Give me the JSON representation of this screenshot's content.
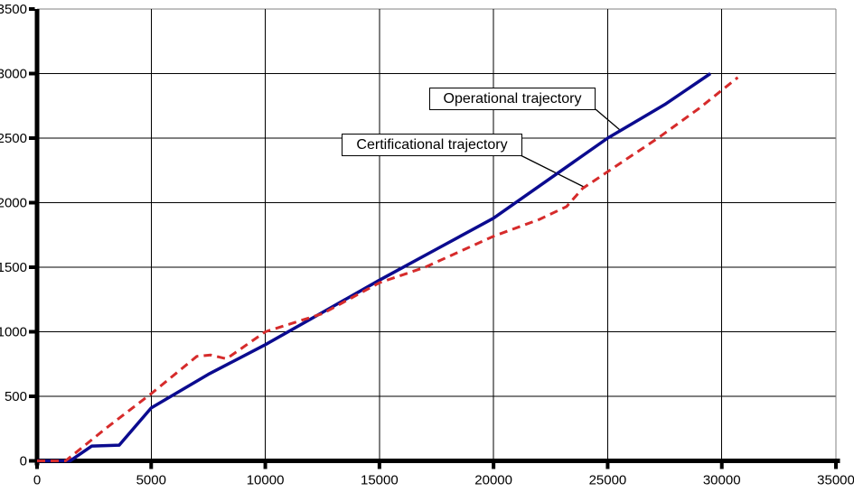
{
  "chart_data": {
    "type": "line",
    "title": "",
    "xlabel": "",
    "ylabel": "",
    "grid": "on",
    "legend_position": "none (annotation boxes with leader lines inside plot)",
    "x_axis": {
      "min": 0,
      "max": 35000,
      "tick_step": 5000,
      "ticks": [
        0,
        5000,
        10000,
        15000,
        20000,
        25000,
        30000,
        35000
      ]
    },
    "y_axis": {
      "min": 0,
      "max": 3500,
      "tick_step": 500,
      "ticks": [
        0,
        500,
        1000,
        1500,
        2000,
        2500,
        3000,
        3500
      ]
    },
    "series": [
      {
        "name": "Operational trajectory",
        "color": "#0b0b8f",
        "line_style": "solid",
        "points": [
          [
            0,
            0
          ],
          [
            1450,
            0
          ],
          [
            2400,
            115
          ],
          [
            3600,
            122
          ],
          [
            5000,
            410
          ],
          [
            7500,
            670
          ],
          [
            10000,
            900
          ],
          [
            12500,
            1150
          ],
          [
            15000,
            1400
          ],
          [
            17500,
            1640
          ],
          [
            20000,
            1880
          ],
          [
            22500,
            2190
          ],
          [
            25000,
            2500
          ],
          [
            27500,
            2760
          ],
          [
            29500,
            3000
          ]
        ]
      },
      {
        "name": "Certificational trajectory",
        "color": "#d62b2b",
        "line_style": "dashed",
        "points": [
          [
            0,
            0
          ],
          [
            1250,
            0
          ],
          [
            3000,
            250
          ],
          [
            5000,
            520
          ],
          [
            7000,
            810
          ],
          [
            7600,
            820
          ],
          [
            8300,
            790
          ],
          [
            10000,
            1000
          ],
          [
            12500,
            1140
          ],
          [
            15000,
            1380
          ],
          [
            17000,
            1500
          ],
          [
            20000,
            1740
          ],
          [
            22000,
            1870
          ],
          [
            23200,
            1970
          ],
          [
            23900,
            2110
          ],
          [
            25000,
            2240
          ],
          [
            27200,
            2500
          ],
          [
            29000,
            2730
          ],
          [
            30700,
            2970
          ]
        ]
      }
    ],
    "annotations": [
      {
        "label": "Operational trajectory",
        "attached_series": "Operational trajectory"
      },
      {
        "label": "Certificational trajectory",
        "attached_series": "Certificational trajectory"
      }
    ]
  },
  "colors": {
    "background": "#ffffff",
    "gridline": "#000000",
    "plot_border": "#808080",
    "axis": "#000000",
    "tick": "#000000",
    "annotation_border": "#000000",
    "annotation_background": "#ffffff",
    "leader_line": "#000000"
  }
}
